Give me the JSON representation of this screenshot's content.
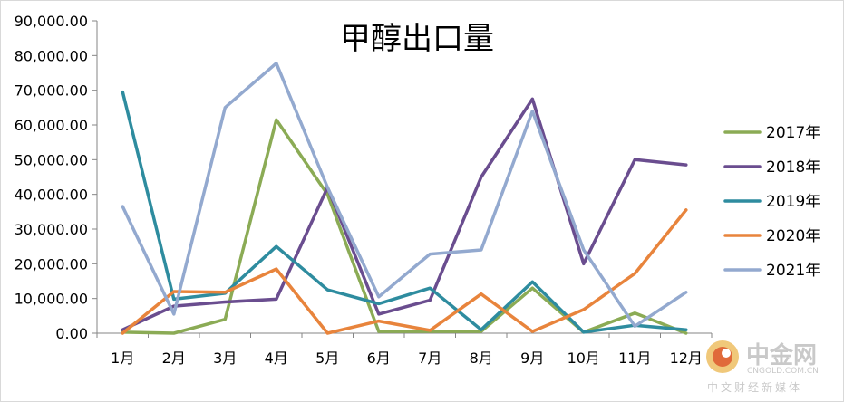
{
  "chart_data": {
    "type": "line",
    "title": "甲醇出口量",
    "xlabel": "",
    "ylabel": "",
    "categories": [
      "1月",
      "2月",
      "3月",
      "4月",
      "5月",
      "6月",
      "7月",
      "8月",
      "9月",
      "10月",
      "11月",
      "12月"
    ],
    "ylim": [
      0,
      90000
    ],
    "yticks": [
      "0.00",
      "10,000.00",
      "20,000.00",
      "30,000.00",
      "40,000.00",
      "50,000.00",
      "60,000.00",
      "70,000.00",
      "80,000.00",
      "90,000.00"
    ],
    "ytick_values": [
      0,
      10000,
      20000,
      30000,
      40000,
      50000,
      60000,
      70000,
      80000,
      90000
    ],
    "grid": false,
    "legend": "right",
    "series": [
      {
        "name": "2017年",
        "color": "#8bab55",
        "values": [
          300,
          0,
          4000,
          61500,
          40000,
          500,
          500,
          500,
          13000,
          300,
          5800,
          0
        ]
      },
      {
        "name": "2018年",
        "color": "#6a4d8f",
        "values": [
          1000,
          7800,
          9000,
          9800,
          42000,
          5500,
          9500,
          45000,
          67500,
          20000,
          50000,
          48500
        ]
      },
      {
        "name": "2019年",
        "color": "#2e8c9f",
        "values": [
          69500,
          9800,
          11500,
          25000,
          12500,
          8500,
          13000,
          1000,
          14800,
          300,
          2300,
          1000
        ]
      },
      {
        "name": "2020年",
        "color": "#e8843c",
        "values": [
          0,
          12000,
          11800,
          18500,
          0,
          3500,
          800,
          11300,
          500,
          6800,
          17200,
          35500
        ]
      },
      {
        "name": "2021年",
        "color": "#93a9cf",
        "values": [
          36500,
          5500,
          65000,
          77800,
          42000,
          10500,
          22800,
          24000,
          64000,
          24000,
          2000,
          11800
        ]
      }
    ]
  },
  "watermark": {
    "brand": "中金网",
    "domain": "CNGOLD.COM.CN",
    "tagline": "中文财经新媒体"
  }
}
